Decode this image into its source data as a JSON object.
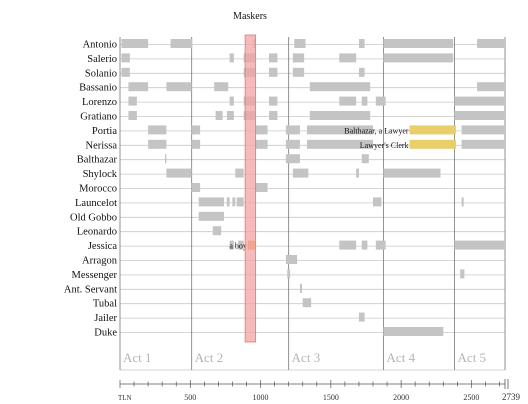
{
  "chart_data": {
    "type": "timeline",
    "title": "Maskers",
    "x_label": "TLN",
    "x_range": [
      0,
      2739
    ],
    "x_ticks": [
      500,
      1000,
      1500,
      2000,
      2500
    ],
    "x_end_label": "2739",
    "highlight": {
      "label": "Maskers",
      "start": 890,
      "end": 965,
      "color": "#f4a3a3"
    },
    "acts": [
      {
        "label": "Act 1",
        "start": 0
      },
      {
        "label": "Act 2",
        "start": 510
      },
      {
        "label": "Act 3",
        "start": 1200
      },
      {
        "label": "Act 4",
        "start": 1875
      },
      {
        "label": "Act 5",
        "start": 2380
      }
    ],
    "characters": [
      {
        "name": "Antonio",
        "segments": [
          [
            10,
            200
          ],
          [
            360,
            515
          ],
          [
            950,
            965
          ],
          [
            1240,
            1320
          ],
          [
            1700,
            1740
          ],
          [
            1875,
            2370
          ],
          [
            2540,
            2739
          ]
        ]
      },
      {
        "name": "Salerio",
        "segments": [
          [
            10,
            70
          ],
          [
            780,
            810
          ],
          [
            880,
            960
          ],
          [
            1060,
            1120
          ],
          [
            1230,
            1310
          ],
          [
            1560,
            1680
          ],
          [
            1875,
            2370
          ]
        ]
      },
      {
        "name": "Solanio",
        "segments": [
          [
            10,
            70
          ],
          [
            880,
            960
          ],
          [
            1060,
            1120
          ],
          [
            1230,
            1310
          ],
          [
            1700,
            1740
          ]
        ]
      },
      {
        "name": "Bassanio",
        "segments": [
          [
            60,
            200
          ],
          [
            330,
            510
          ],
          [
            670,
            770
          ],
          [
            1350,
            1780
          ],
          [
            2540,
            2739
          ]
        ]
      },
      {
        "name": "Lorenzo",
        "segments": [
          [
            60,
            120
          ],
          [
            780,
            810
          ],
          [
            880,
            960
          ],
          [
            1060,
            1120
          ],
          [
            1560,
            1680
          ],
          [
            1720,
            1760
          ],
          [
            1820,
            1890
          ],
          [
            2380,
            2739
          ]
        ]
      },
      {
        "name": "Gratiano",
        "segments": [
          [
            60,
            120
          ],
          [
            680,
            730
          ],
          [
            760,
            810
          ],
          [
            880,
            960
          ],
          [
            1060,
            1120
          ],
          [
            1350,
            1780
          ],
          [
            2380,
            2739
          ]
        ]
      },
      {
        "name": "Portia",
        "segments": [
          [
            200,
            330
          ],
          [
            510,
            570
          ],
          [
            960,
            1050
          ],
          [
            1180,
            1280
          ],
          [
            1330,
            1800
          ],
          [
            2430,
            2739
          ]
        ]
      },
      {
        "name": "Nerissa",
        "segments": [
          [
            200,
            330
          ],
          [
            510,
            570
          ],
          [
            960,
            1050
          ],
          [
            1180,
            1280
          ],
          [
            1330,
            1800
          ],
          [
            2430,
            2739
          ]
        ]
      },
      {
        "name": "Balthazar",
        "segments": [
          [
            320,
            330
          ],
          [
            1180,
            1280
          ],
          [
            1720,
            1770
          ]
        ]
      },
      {
        "name": "Shylock",
        "segments": [
          [
            330,
            510
          ],
          [
            820,
            880
          ],
          [
            1230,
            1340
          ],
          [
            1680,
            1700
          ],
          [
            1875,
            2280
          ]
        ]
      },
      {
        "name": "Morocco",
        "segments": [
          [
            510,
            570
          ],
          [
            960,
            1050
          ]
        ]
      },
      {
        "name": "Launcelot",
        "segments": [
          [
            560,
            740
          ],
          [
            760,
            780
          ],
          [
            800,
            820
          ],
          [
            830,
            880
          ],
          [
            1800,
            1860
          ],
          [
            2430,
            2445
          ]
        ]
      },
      {
        "name": "Old Gobbo",
        "segments": [
          [
            560,
            740
          ]
        ]
      },
      {
        "name": "Leonardo",
        "segments": [
          [
            660,
            720
          ]
        ]
      },
      {
        "name": "Jessica",
        "segments": [
          [
            780,
            810
          ],
          [
            840,
            880
          ],
          [
            1560,
            1680
          ],
          [
            1720,
            1760
          ],
          [
            1820,
            1890
          ],
          [
            2380,
            2739
          ]
        ]
      },
      {
        "name": "Arragon",
        "segments": [
          [
            1180,
            1260
          ]
        ]
      },
      {
        "name": "Messenger",
        "segments": [
          [
            1190,
            1210
          ],
          [
            2420,
            2450
          ]
        ]
      },
      {
        "name": "Ant. Servant",
        "segments": [
          [
            1280,
            1295
          ]
        ]
      },
      {
        "name": "Tubal",
        "segments": [
          [
            1300,
            1360
          ]
        ]
      },
      {
        "name": "Jailer",
        "segments": [
          [
            1700,
            1740
          ]
        ]
      },
      {
        "name": "Duke",
        "segments": [
          [
            1875,
            2300
          ]
        ]
      }
    ],
    "disguises": [
      {
        "character": "Portia",
        "label": "Balthazar, a Lawyer",
        "start": 2060,
        "end": 2390,
        "color": "#e8cf6a"
      },
      {
        "character": "Nerissa",
        "label": "Lawyer's Clerk",
        "start": 2060,
        "end": 2390,
        "color": "#e8cf6a"
      },
      {
        "character": "Jessica",
        "label": "a boy",
        "start": 910,
        "end": 960,
        "color": "#e9a64d"
      }
    ],
    "colors": {
      "segment": "#c4c4c4",
      "row_line": "#c8c8c8",
      "act_line": "#777777",
      "text": "#111111",
      "act_label": "#b5b5b5"
    }
  }
}
